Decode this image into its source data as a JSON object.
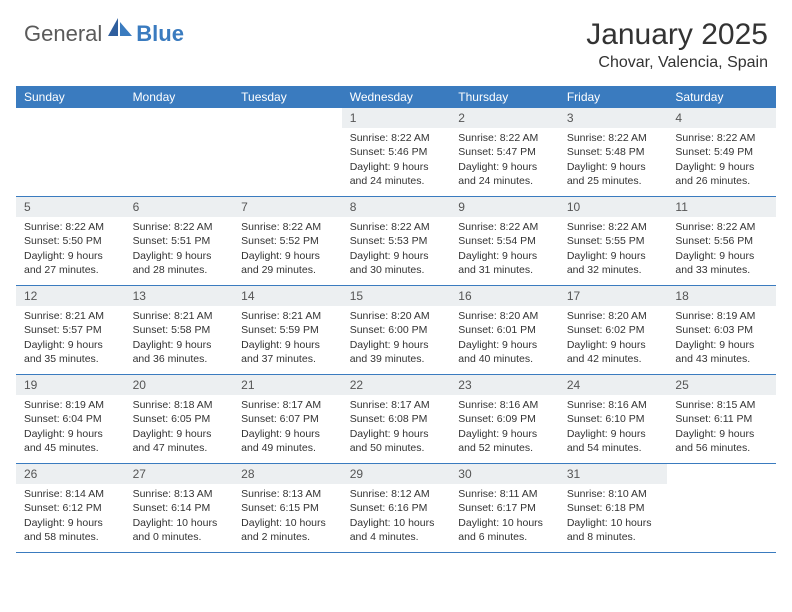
{
  "logo": {
    "text1": "General",
    "text2": "Blue"
  },
  "title": "January 2025",
  "location": "Chovar, Valencia, Spain",
  "colors": {
    "header_bg": "#3a7bbf",
    "daynum_bg": "#eceff1",
    "border": "#3a7bbf",
    "text": "#333333",
    "logo_gray": "#5a5a5a",
    "logo_blue": "#3a7bbf"
  },
  "weekdays": [
    "Sunday",
    "Monday",
    "Tuesday",
    "Wednesday",
    "Thursday",
    "Friday",
    "Saturday"
  ],
  "weeks": [
    [
      {
        "day": "",
        "lines": [
          "",
          "",
          "",
          ""
        ]
      },
      {
        "day": "",
        "lines": [
          "",
          "",
          "",
          ""
        ]
      },
      {
        "day": "",
        "lines": [
          "",
          "",
          "",
          ""
        ]
      },
      {
        "day": "1",
        "lines": [
          "Sunrise: 8:22 AM",
          "Sunset: 5:46 PM",
          "Daylight: 9 hours",
          "and 24 minutes."
        ]
      },
      {
        "day": "2",
        "lines": [
          "Sunrise: 8:22 AM",
          "Sunset: 5:47 PM",
          "Daylight: 9 hours",
          "and 24 minutes."
        ]
      },
      {
        "day": "3",
        "lines": [
          "Sunrise: 8:22 AM",
          "Sunset: 5:48 PM",
          "Daylight: 9 hours",
          "and 25 minutes."
        ]
      },
      {
        "day": "4",
        "lines": [
          "Sunrise: 8:22 AM",
          "Sunset: 5:49 PM",
          "Daylight: 9 hours",
          "and 26 minutes."
        ]
      }
    ],
    [
      {
        "day": "5",
        "lines": [
          "Sunrise: 8:22 AM",
          "Sunset: 5:50 PM",
          "Daylight: 9 hours",
          "and 27 minutes."
        ]
      },
      {
        "day": "6",
        "lines": [
          "Sunrise: 8:22 AM",
          "Sunset: 5:51 PM",
          "Daylight: 9 hours",
          "and 28 minutes."
        ]
      },
      {
        "day": "7",
        "lines": [
          "Sunrise: 8:22 AM",
          "Sunset: 5:52 PM",
          "Daylight: 9 hours",
          "and 29 minutes."
        ]
      },
      {
        "day": "8",
        "lines": [
          "Sunrise: 8:22 AM",
          "Sunset: 5:53 PM",
          "Daylight: 9 hours",
          "and 30 minutes."
        ]
      },
      {
        "day": "9",
        "lines": [
          "Sunrise: 8:22 AM",
          "Sunset: 5:54 PM",
          "Daylight: 9 hours",
          "and 31 minutes."
        ]
      },
      {
        "day": "10",
        "lines": [
          "Sunrise: 8:22 AM",
          "Sunset: 5:55 PM",
          "Daylight: 9 hours",
          "and 32 minutes."
        ]
      },
      {
        "day": "11",
        "lines": [
          "Sunrise: 8:22 AM",
          "Sunset: 5:56 PM",
          "Daylight: 9 hours",
          "and 33 minutes."
        ]
      }
    ],
    [
      {
        "day": "12",
        "lines": [
          "Sunrise: 8:21 AM",
          "Sunset: 5:57 PM",
          "Daylight: 9 hours",
          "and 35 minutes."
        ]
      },
      {
        "day": "13",
        "lines": [
          "Sunrise: 8:21 AM",
          "Sunset: 5:58 PM",
          "Daylight: 9 hours",
          "and 36 minutes."
        ]
      },
      {
        "day": "14",
        "lines": [
          "Sunrise: 8:21 AM",
          "Sunset: 5:59 PM",
          "Daylight: 9 hours",
          "and 37 minutes."
        ]
      },
      {
        "day": "15",
        "lines": [
          "Sunrise: 8:20 AM",
          "Sunset: 6:00 PM",
          "Daylight: 9 hours",
          "and 39 minutes."
        ]
      },
      {
        "day": "16",
        "lines": [
          "Sunrise: 8:20 AM",
          "Sunset: 6:01 PM",
          "Daylight: 9 hours",
          "and 40 minutes."
        ]
      },
      {
        "day": "17",
        "lines": [
          "Sunrise: 8:20 AM",
          "Sunset: 6:02 PM",
          "Daylight: 9 hours",
          "and 42 minutes."
        ]
      },
      {
        "day": "18",
        "lines": [
          "Sunrise: 8:19 AM",
          "Sunset: 6:03 PM",
          "Daylight: 9 hours",
          "and 43 minutes."
        ]
      }
    ],
    [
      {
        "day": "19",
        "lines": [
          "Sunrise: 8:19 AM",
          "Sunset: 6:04 PM",
          "Daylight: 9 hours",
          "and 45 minutes."
        ]
      },
      {
        "day": "20",
        "lines": [
          "Sunrise: 8:18 AM",
          "Sunset: 6:05 PM",
          "Daylight: 9 hours",
          "and 47 minutes."
        ]
      },
      {
        "day": "21",
        "lines": [
          "Sunrise: 8:17 AM",
          "Sunset: 6:07 PM",
          "Daylight: 9 hours",
          "and 49 minutes."
        ]
      },
      {
        "day": "22",
        "lines": [
          "Sunrise: 8:17 AM",
          "Sunset: 6:08 PM",
          "Daylight: 9 hours",
          "and 50 minutes."
        ]
      },
      {
        "day": "23",
        "lines": [
          "Sunrise: 8:16 AM",
          "Sunset: 6:09 PM",
          "Daylight: 9 hours",
          "and 52 minutes."
        ]
      },
      {
        "day": "24",
        "lines": [
          "Sunrise: 8:16 AM",
          "Sunset: 6:10 PM",
          "Daylight: 9 hours",
          "and 54 minutes."
        ]
      },
      {
        "day": "25",
        "lines": [
          "Sunrise: 8:15 AM",
          "Sunset: 6:11 PM",
          "Daylight: 9 hours",
          "and 56 minutes."
        ]
      }
    ],
    [
      {
        "day": "26",
        "lines": [
          "Sunrise: 8:14 AM",
          "Sunset: 6:12 PM",
          "Daylight: 9 hours",
          "and 58 minutes."
        ]
      },
      {
        "day": "27",
        "lines": [
          "Sunrise: 8:13 AM",
          "Sunset: 6:14 PM",
          "Daylight: 10 hours",
          "and 0 minutes."
        ]
      },
      {
        "day": "28",
        "lines": [
          "Sunrise: 8:13 AM",
          "Sunset: 6:15 PM",
          "Daylight: 10 hours",
          "and 2 minutes."
        ]
      },
      {
        "day": "29",
        "lines": [
          "Sunrise: 8:12 AM",
          "Sunset: 6:16 PM",
          "Daylight: 10 hours",
          "and 4 minutes."
        ]
      },
      {
        "day": "30",
        "lines": [
          "Sunrise: 8:11 AM",
          "Sunset: 6:17 PM",
          "Daylight: 10 hours",
          "and 6 minutes."
        ]
      },
      {
        "day": "31",
        "lines": [
          "Sunrise: 8:10 AM",
          "Sunset: 6:18 PM",
          "Daylight: 10 hours",
          "and 8 minutes."
        ]
      },
      {
        "day": "",
        "lines": [
          "",
          "",
          "",
          ""
        ]
      }
    ]
  ]
}
